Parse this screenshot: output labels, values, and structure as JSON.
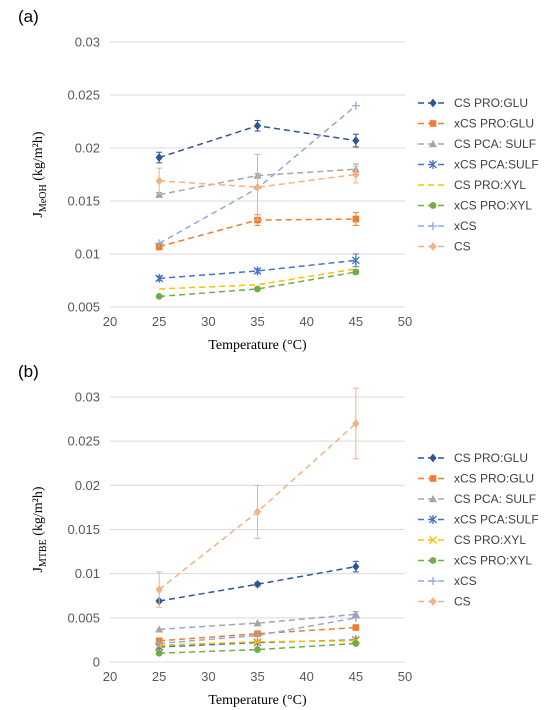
{
  "panels": [
    {
      "label": "(a)"
    },
    {
      "label": "(b)"
    }
  ],
  "chart_data": [
    {
      "type": "line",
      "title": "",
      "panel_label": "(a)",
      "xlabel": "Temperature (°C)",
      "ylabel_main": "J",
      "ylabel_sub": "MeOH",
      "ylabel_unit": " (kg/m²h)",
      "xlim": [
        20,
        50
      ],
      "ylim": [
        0.005,
        0.03
      ],
      "xticks": [
        20,
        25,
        30,
        35,
        40,
        45,
        50
      ],
      "xtick_labels": [
        "20",
        "25",
        "30",
        "35",
        "40",
        "45",
        "50"
      ],
      "yticks": [
        0.005,
        0.01,
        0.015,
        0.02,
        0.025,
        0.03
      ],
      "ytick_labels": [
        "0.005",
        "0.01",
        "0.015",
        "0.02",
        "0.025",
        "0.03"
      ],
      "grid": "horizontal",
      "legend_position": "right",
      "x": [
        25,
        35,
        45
      ],
      "series": [
        {
          "name": "CS PRO:GLU",
          "color": "#2f5597",
          "marker": "diamond",
          "values": [
            0.0191,
            0.0221,
            0.0207
          ],
          "errors": [
            0.0005,
            0.0005,
            0.0006
          ]
        },
        {
          "name": "xCS PRO:GLU",
          "color": "#ed7d31",
          "marker": "square",
          "values": [
            0.0107,
            0.0132,
            0.0133
          ],
          "errors": [
            0.0003,
            0.0005,
            0.0006
          ]
        },
        {
          "name": "CS PCA: SULF",
          "color": "#a5a5a5",
          "marker": "triangle",
          "values": [
            0.0156,
            0.0174,
            0.018
          ],
          "errors": [
            0.0002,
            0.0002,
            0.0005
          ]
        },
        {
          "name": "xCS PCA:SULF",
          "color": "#4472c4",
          "marker": "star",
          "values": [
            0.0077,
            0.0084,
            0.0094
          ],
          "errors": [
            0.0002,
            0.0002,
            0.0006
          ]
        },
        {
          "name": "CS PRO:XYL",
          "color": "#ffc000",
          "marker": "none",
          "values": [
            0.0067,
            0.0071,
            0.0086
          ],
          "errors": [
            0,
            0,
            0
          ]
        },
        {
          "name": "xCS PRO:XYL",
          "color": "#70ad47",
          "marker": "circle",
          "values": [
            0.006,
            0.0067,
            0.0083
          ],
          "errors": [
            0.0001,
            0.0001,
            0.0002
          ]
        },
        {
          "name": "xCS",
          "color": "#8faadc",
          "marker": "plus",
          "values": [
            0.011,
            0.0162,
            0.024
          ],
          "errors": [
            0,
            0,
            0
          ]
        },
        {
          "name": "CS",
          "color": "#f4b183",
          "marker": "diamond",
          "values": [
            0.0169,
            0.0163,
            0.0175
          ],
          "errors": [
            0.0012,
            0.0031,
            0.0008
          ]
        }
      ]
    },
    {
      "type": "line",
      "title": "",
      "panel_label": "(b)",
      "xlabel": "Temperature (°C)",
      "ylabel_main": "J",
      "ylabel_sub": "MTBE",
      "ylabel_unit": " (kg/m²h)",
      "xlim": [
        20,
        50
      ],
      "ylim": [
        0,
        0.03
      ],
      "xticks": [
        20,
        25,
        30,
        35,
        40,
        45,
        50
      ],
      "xtick_labels": [
        "20",
        "25",
        "30",
        "35",
        "40",
        "45",
        "50"
      ],
      "yticks": [
        0,
        0.005,
        0.01,
        0.015,
        0.02,
        0.025,
        0.03
      ],
      "ytick_labels": [
        "0",
        "0.005",
        "0.01",
        "0.015",
        "0.02",
        "0.025",
        "0.03"
      ],
      "grid": "horizontal",
      "legend_position": "right",
      "x": [
        25,
        35,
        45
      ],
      "series": [
        {
          "name": "CS PRO:GLU",
          "color": "#2f5597",
          "marker": "diamond",
          "values": [
            0.0069,
            0.0088,
            0.0108
          ],
          "errors": [
            0.0001,
            0.0002,
            0.0006
          ]
        },
        {
          "name": "xCS PRO:GLU",
          "color": "#ed7d31",
          "marker": "square",
          "values": [
            0.0024,
            0.0032,
            0.0039
          ],
          "errors": [
            0,
            0,
            0
          ]
        },
        {
          "name": "CS PCA: SULF",
          "color": "#a5a5a5",
          "marker": "triangle",
          "values": [
            0.0037,
            0.0044,
            0.0054
          ],
          "errors": [
            0,
            0,
            0.0003
          ]
        },
        {
          "name": "xCS PCA:SULF",
          "color": "#4472c4",
          "marker": "star",
          "values": [
            0.0017,
            0.0022,
            0.0025
          ],
          "errors": [
            0,
            0,
            0
          ]
        },
        {
          "name": "CS PRO:XYL",
          "color": "#ffc000",
          "marker": "x",
          "values": [
            0.0019,
            0.0023,
            0.0024
          ],
          "errors": [
            0,
            0,
            0
          ]
        },
        {
          "name": "xCS PRO:XYL",
          "color": "#70ad47",
          "marker": "circle",
          "values": [
            0.001,
            0.0014,
            0.0021
          ],
          "errors": [
            0,
            0,
            0
          ]
        },
        {
          "name": "xCS",
          "color": "#8faadc",
          "marker": "plus",
          "values": [
            0.0021,
            0.003,
            0.005
          ],
          "errors": [
            0,
            0,
            0
          ]
        },
        {
          "name": "CS",
          "color": "#f4b183",
          "marker": "diamond",
          "values": [
            0.0082,
            0.017,
            0.027
          ],
          "errors": [
            0.002,
            0.003,
            0.004
          ]
        }
      ]
    }
  ]
}
